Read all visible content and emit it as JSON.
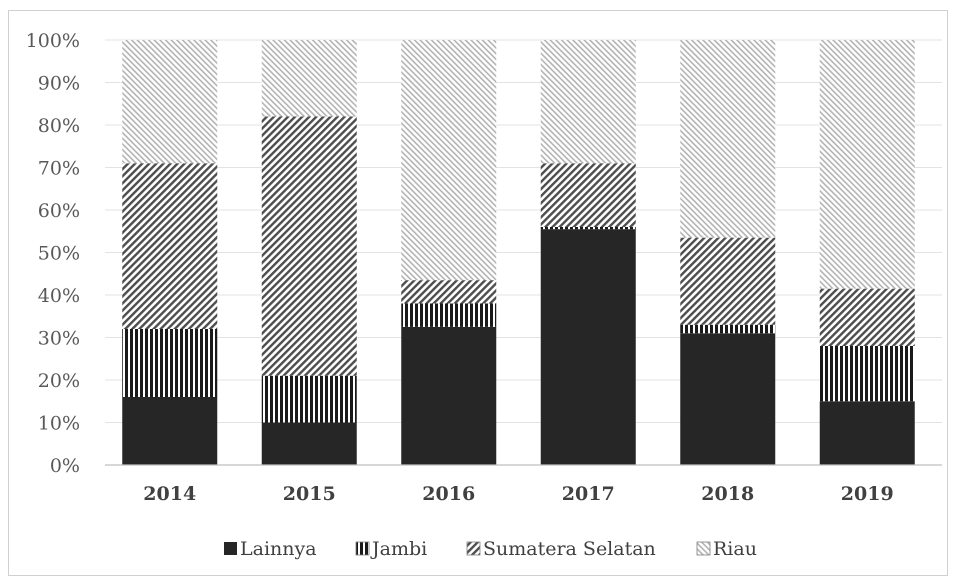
{
  "chart_data": {
    "type": "bar",
    "stacked": true,
    "percent": true,
    "title": "",
    "xlabel": "",
    "ylabel": "",
    "ylim": [
      0,
      100
    ],
    "y_ticks": [
      "0%",
      "10%",
      "20%",
      "30%",
      "40%",
      "50%",
      "60%",
      "70%",
      "80%",
      "90%",
      "100%"
    ],
    "grid": true,
    "legend_position": "bottom",
    "categories": [
      "2014",
      "2015",
      "2016",
      "2017",
      "2018",
      "2019"
    ],
    "series": [
      {
        "name": "Lainnya",
        "values": [
          16,
          10,
          32.5,
          55.5,
          31,
          15
        ],
        "pattern": "solid",
        "color": "#262626"
      },
      {
        "name": "Jambi",
        "values": [
          16,
          11,
          5.5,
          0.5,
          2,
          13
        ],
        "pattern": "vertical-lines",
        "color": "#262626"
      },
      {
        "name": "Sumatera Selatan",
        "values": [
          39,
          61,
          5.5,
          15,
          20.5,
          13.5
        ],
        "pattern": "dense-diagonal",
        "color": "#595959"
      },
      {
        "name": "Riau",
        "values": [
          29,
          18,
          56.5,
          29,
          46.5,
          58.5
        ],
        "pattern": "light-diagonal",
        "color": "#a6a6a6"
      }
    ]
  }
}
